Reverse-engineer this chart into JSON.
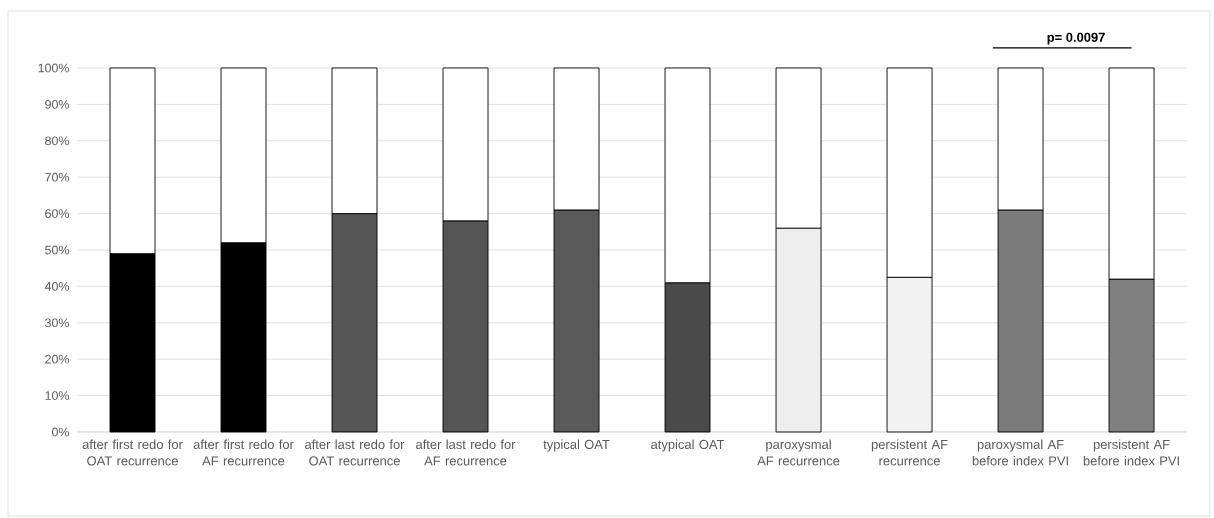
{
  "chart_data": {
    "type": "bar",
    "stacked": true,
    "categories": [
      "after first redo for OAT recurrence",
      "after first redo for AF recurrence",
      "after last redo for OAT recurrence",
      "after last redo for AF recurrence",
      "typical OAT",
      "atypical OAT",
      "paroxysmal AF recurrence",
      "persistent AF recurrence",
      "paroxysmal AF before index PVI",
      "persistent AF before index PVI"
    ],
    "series": [
      {
        "values": [
          49,
          52,
          60,
          58,
          61,
          41,
          56,
          42.5,
          61,
          42
        ],
        "colors": [
          "#000000",
          "#000000",
          "#555555",
          "#555555",
          "#5a5a5a",
          "#4a4a4a",
          "#eeeeee",
          "#f2f2f2",
          "#7a7a7a",
          "#808080"
        ]
      },
      {
        "color": "#ffffff",
        "values": [
          51,
          48,
          40,
          42,
          39,
          59,
          44,
          57.5,
          39,
          58
        ]
      }
    ],
    "ylim": [
      0,
      100
    ],
    "yticks": [
      {
        "value": 0,
        "label": "0%"
      },
      {
        "value": 10,
        "label": "10%"
      },
      {
        "value": 20,
        "label": "20%"
      },
      {
        "value": 30,
        "label": "30%"
      },
      {
        "value": 40,
        "label": "40%"
      },
      {
        "value": 50,
        "label": "50%"
      },
      {
        "value": 60,
        "label": "60%"
      },
      {
        "value": 70,
        "label": "70%"
      },
      {
        "value": 80,
        "label": "80%"
      },
      {
        "value": 90,
        "label": "90%"
      },
      {
        "value": 100,
        "label": "100%"
      }
    ],
    "grid": "y",
    "annotations": [
      "p= 0.0097"
    ]
  }
}
